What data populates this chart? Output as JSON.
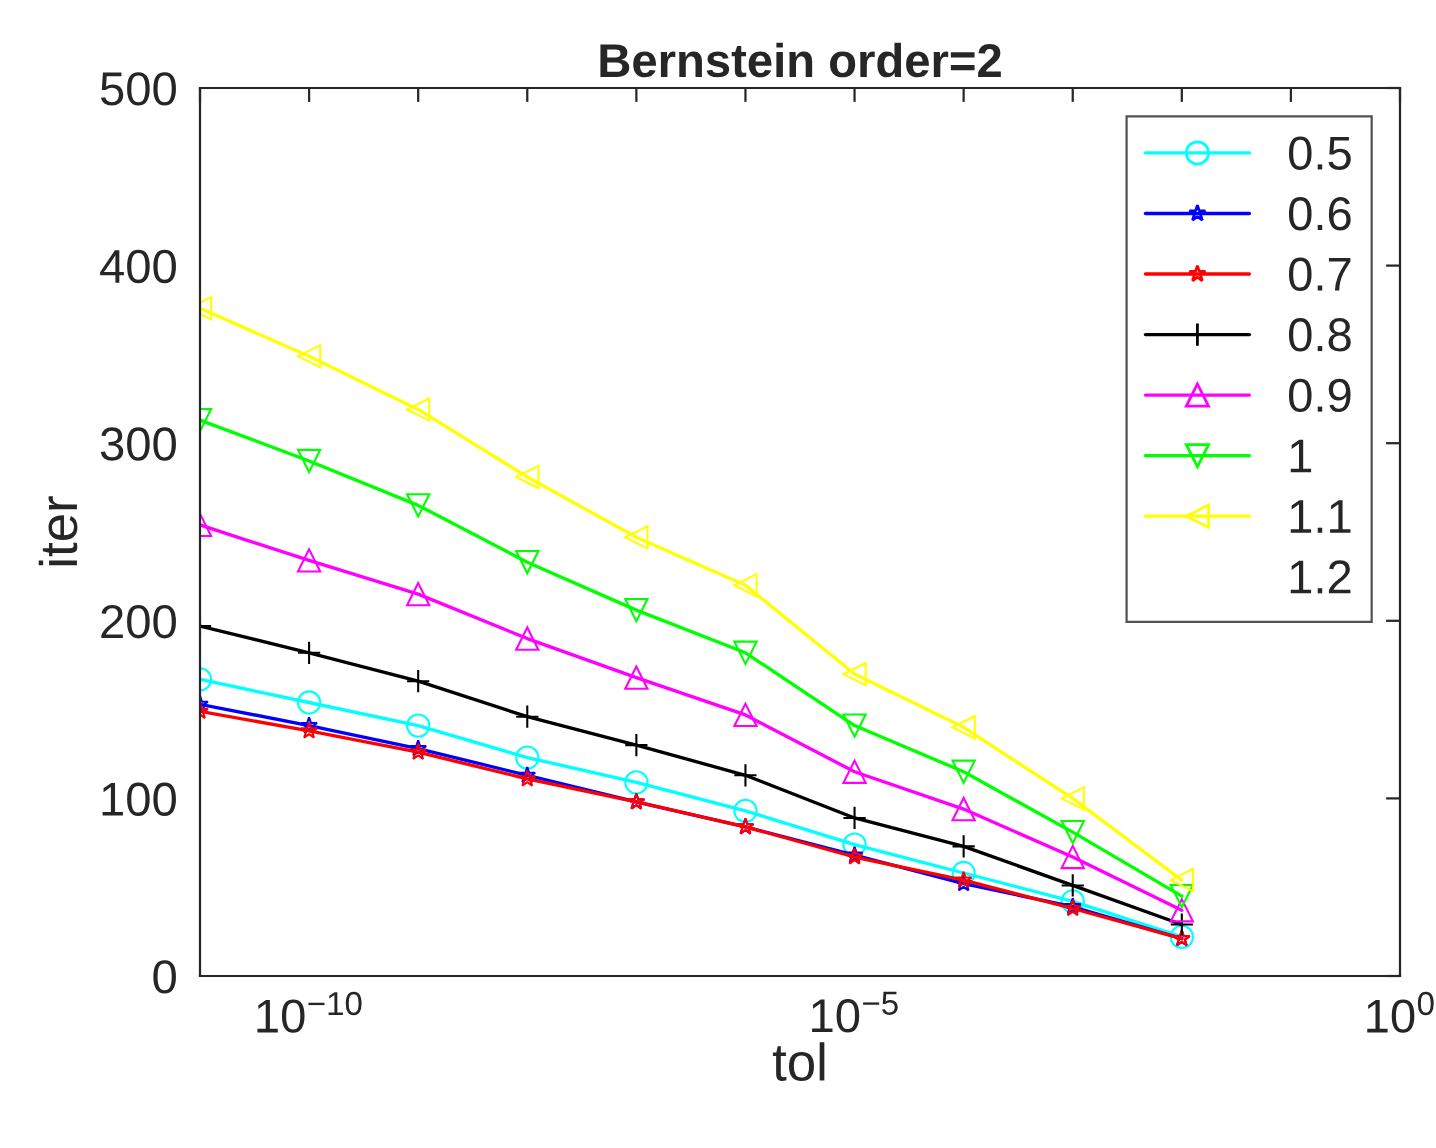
{
  "chart_data": {
    "type": "line",
    "title": "Bernstein order=2",
    "xlabel": "tol",
    "ylabel": "iter",
    "log": "x",
    "x": [
      1e-11,
      1e-10,
      1e-09,
      1e-08,
      1e-07,
      1e-06,
      1e-05,
      0.0001,
      0.001,
      0.01
    ],
    "xlim": [
      1e-11,
      1
    ],
    "ylim": [
      0,
      500
    ],
    "yticks": [
      0,
      100,
      200,
      300,
      400,
      500
    ],
    "xticks": [
      {
        "value": 1e-11,
        "label": null
      },
      {
        "value": 1e-10,
        "label": "10$^{−10}$"
      },
      {
        "value": 1e-09,
        "label": null
      },
      {
        "value": 1e-08,
        "label": null
      },
      {
        "value": 1e-07,
        "label": null
      },
      {
        "value": 1e-06,
        "label": null
      },
      {
        "value": 1e-05,
        "label": "10$^{−5}$"
      },
      {
        "value": 0.0001,
        "label": null
      },
      {
        "value": 0.001,
        "label": null
      },
      {
        "value": 0.01,
        "label": null
      },
      {
        "value": 0.1,
        "label": null
      },
      {
        "value": 1,
        "label": "10$^{0}$"
      }
    ],
    "grid": false,
    "legend": "top right",
    "line_style": "solid",
    "series": [
      {
        "name": "0.5",
        "color": "#00ffff",
        "marker": "circle",
        "values": [
          167,
          154,
          141,
          123,
          109,
          93,
          74,
          58,
          42,
          22
        ]
      },
      {
        "name": "0.6",
        "color": "#0000ff",
        "marker": "star",
        "values": [
          153,
          141,
          128,
          113,
          98,
          84,
          68,
          52,
          39,
          21
        ]
      },
      {
        "name": "0.7",
        "color": "#ff0000",
        "marker": "star",
        "values": [
          149,
          138,
          126,
          111,
          98,
          84,
          67,
          54,
          38,
          21
        ]
      },
      {
        "name": "0.8",
        "color": "#000000",
        "marker": "cross",
        "values": [
          197,
          182,
          166,
          146,
          130,
          113,
          89,
          73,
          51,
          29
        ]
      },
      {
        "name": "0.9",
        "color": "#ff00ff",
        "marker": "triangle",
        "values": [
          254,
          234,
          215,
          190,
          168,
          147,
          115,
          94,
          67,
          37
        ]
      },
      {
        "name": "1",
        "color": "#00ff00",
        "marker": "triangle_down",
        "values": [
          313,
          290,
          265,
          233,
          206,
          182,
          141,
          115,
          81,
          45
        ]
      },
      {
        "name": "1.1",
        "color": "#ffff00",
        "marker": "triangle_left",
        "values": [
          376,
          349,
          319,
          281,
          247,
          220,
          170,
          140,
          100,
          54
        ]
      },
      {
        "name": "1.2",
        "marker": "none",
        "values": [
          null,
          null,
          null,
          null,
          null,
          null,
          null,
          null,
          null,
          null
        ]
      }
    ]
  }
}
